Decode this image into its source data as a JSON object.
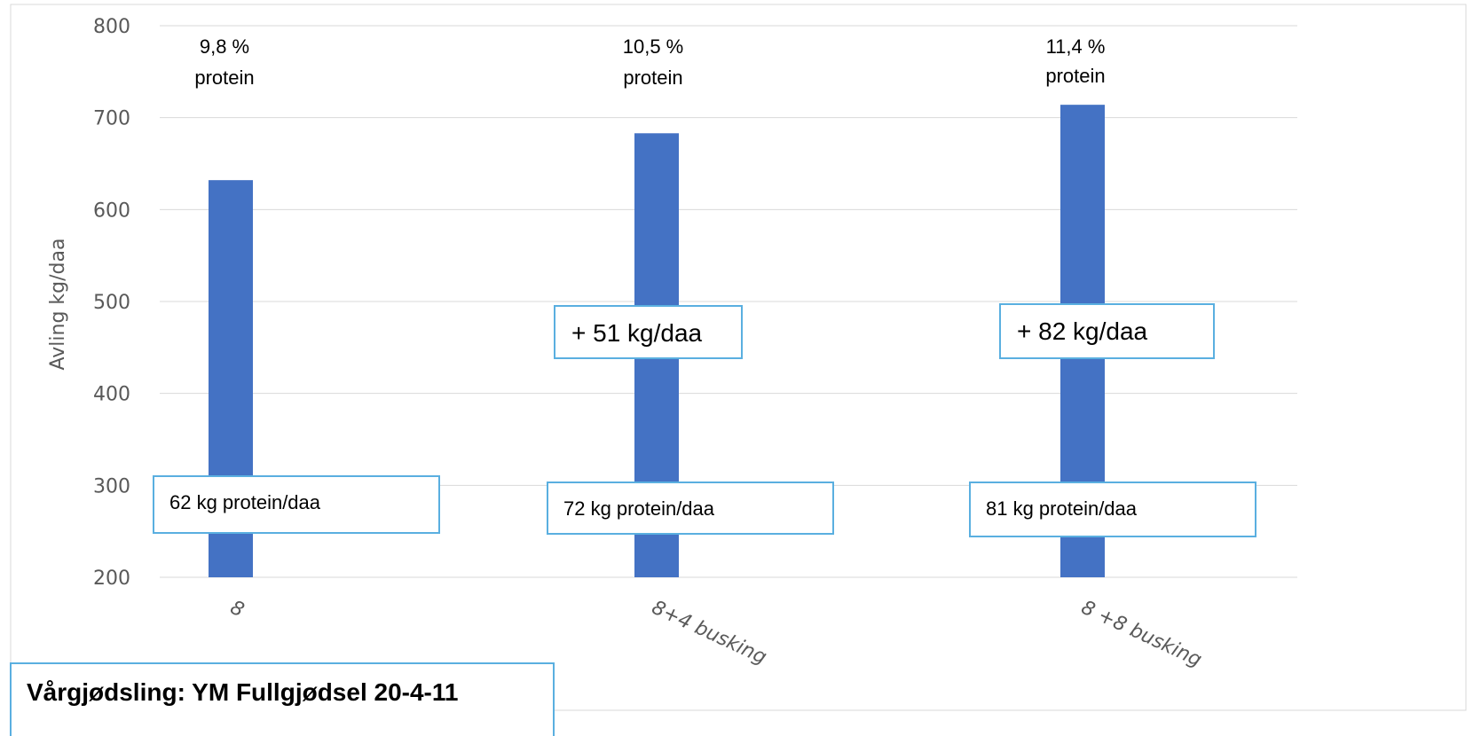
{
  "chart_data": {
    "type": "bar",
    "categories": [
      "8",
      "8+4 busking",
      "8 +8 busking"
    ],
    "values": [
      632,
      683,
      714
    ],
    "ylabel": "Avling kg/daa",
    "xlabel": "",
    "ylim": [
      200,
      800
    ],
    "yticks": [
      200,
      300,
      400,
      500,
      600,
      700,
      800
    ],
    "bar_color": "#4472C4",
    "grid": true,
    "protein_labels": [
      {
        "line1": "9,8 %",
        "line2": "protein"
      },
      {
        "line1": "10,5 %",
        "line2": "protein"
      },
      {
        "line1": "11,4 %",
        "line2": "protein"
      }
    ],
    "protein_yield_labels": [
      "62 kg protein/daa",
      "72 kg protein/daa",
      "81 kg protein/daa"
    ],
    "increase_labels": [
      "",
      "+ 51 kg/daa",
      "+ 82 kg/daa"
    ],
    "footer": "Vårgjødsling: YM Fullgjødsel 20-4-11"
  }
}
